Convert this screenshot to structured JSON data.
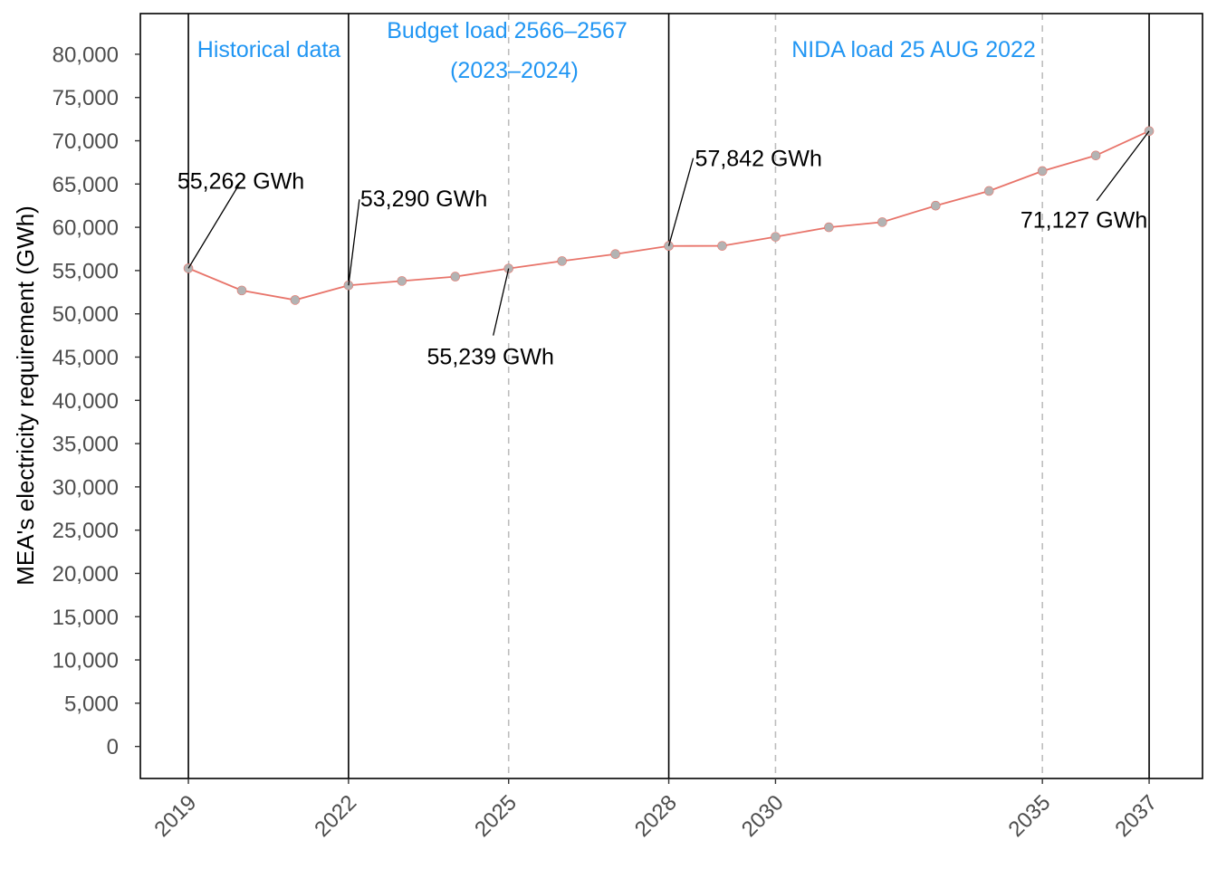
{
  "chart_data": {
    "type": "line",
    "title": "",
    "xlabel": "",
    "ylabel": "MEA's electricity requirement (GWh)",
    "xlim": [
      2018.1,
      2038.0
    ],
    "ylim": [
      -3700,
      84700
    ],
    "y_ticks": [
      0,
      5000,
      10000,
      15000,
      20000,
      25000,
      30000,
      35000,
      40000,
      45000,
      50000,
      55000,
      60000,
      65000,
      70000,
      75000,
      80000
    ],
    "y_tick_labels": [
      "0",
      "5,000",
      "10,000",
      "15,000",
      "20,000",
      "25,000",
      "30,000",
      "35,000",
      "40,000",
      "45,000",
      "50,000",
      "55,000",
      "60,000",
      "65,000",
      "70,000",
      "75,000",
      "80,000"
    ],
    "x_ticks": [
      2019,
      2022,
      2025,
      2028,
      2030,
      2035,
      2037
    ],
    "x_tick_labels": [
      "2019",
      "2022",
      "2025",
      "2028",
      "2030",
      "2035",
      "2037"
    ],
    "series": [
      {
        "color": "#e8746a",
        "marker_color": "#b3b3b3",
        "x": [
          2019,
          2020,
          2021,
          2022,
          2023,
          2024,
          2025,
          2026,
          2027,
          2028,
          2029,
          2030,
          2031,
          2032,
          2033,
          2034,
          2035,
          2036,
          2037
        ],
        "y": [
          55262,
          52700,
          51600,
          53290,
          53800,
          54300,
          55239,
          56100,
          56900,
          57842,
          57850,
          58900,
          60000,
          60600,
          62500,
          64200,
          66500,
          68300,
          71127
        ]
      }
    ],
    "solid_vlines": [
      2019,
      2022,
      2028,
      2037
    ],
    "dashed_vlines": [
      2025,
      2030,
      2035
    ],
    "regions": [
      {
        "label": "Historical data",
        "color": "#2196f3"
      },
      {
        "label": "Budget load 2566–2567",
        "label2": "(2023–2024)",
        "color": "#2196f3"
      },
      {
        "label": "NIDA load 25 AUG 2022",
        "color": "#2196f3"
      }
    ],
    "annotations": [
      {
        "x": 2019,
        "y": 55262,
        "text": "55,262 GWh"
      },
      {
        "x": 2022,
        "y": 53290,
        "text": "53,290 GWh"
      },
      {
        "x": 2025,
        "y": 55239,
        "text": "55,239 GWh"
      },
      {
        "x": 2028,
        "y": 57842,
        "text": "57,842 GWh"
      },
      {
        "x": 2037,
        "y": 71127,
        "text": "71,127 GWh"
      }
    ],
    "grid": false
  }
}
